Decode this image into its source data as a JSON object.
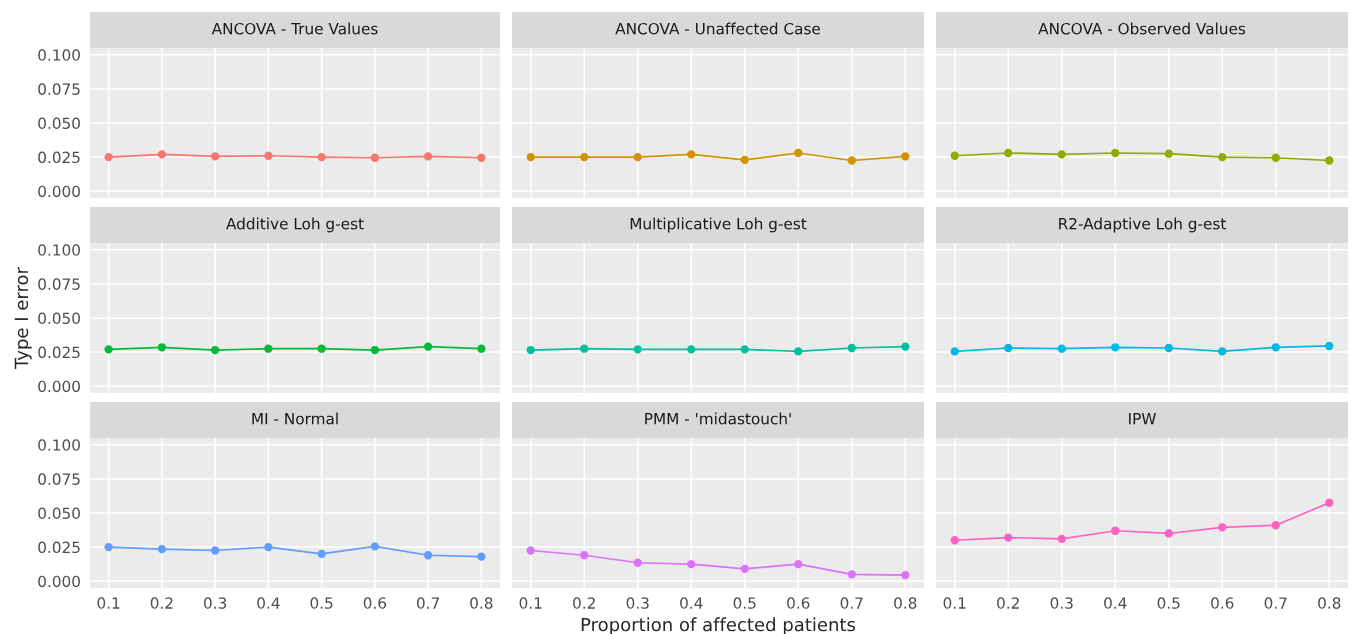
{
  "chart_data": [
    {
      "type": "line",
      "title": "ANCOVA - True Values",
      "ylabel": null,
      "x": [
        0.1,
        0.2,
        0.3,
        0.4,
        0.5,
        0.6,
        0.7,
        0.8
      ],
      "series": [
        {
          "color": "#f8766d",
          "values": [
            0.025,
            0.027,
            0.0255,
            0.026,
            0.025,
            0.0245,
            0.0255,
            0.0245
          ]
        }
      ],
      "xlim": [
        0.065,
        0.835
      ],
      "ylim": [
        -0.005,
        0.105
      ],
      "xticks": [
        0.1,
        0.2,
        0.3,
        0.4,
        0.5,
        0.6,
        0.7,
        0.8
      ],
      "yticks": [
        {
          "value": 0,
          "label": "0.000"
        },
        {
          "value": 0.025,
          "label": "0.025"
        },
        {
          "value": 0.05,
          "label": "0.050"
        },
        {
          "value": 0.075,
          "label": "0.075"
        },
        {
          "value": 0.1,
          "label": "0.100"
        }
      ],
      "grid": true,
      "marker": "circle",
      "tick_labels": "y"
    },
    {
      "type": "line",
      "title": "ANCOVA - Unaffected Case",
      "x": [
        0.1,
        0.2,
        0.3,
        0.4,
        0.5,
        0.6,
        0.7,
        0.8
      ],
      "series": [
        {
          "color": "#d39200",
          "values": [
            0.025,
            0.025,
            0.025,
            0.027,
            0.023,
            0.028,
            0.0225,
            0.0255
          ]
        }
      ],
      "xlim": [
        0.065,
        0.835
      ],
      "ylim": [
        -0.005,
        0.105
      ],
      "xticks": [
        0.1,
        0.2,
        0.3,
        0.4,
        0.5,
        0.6,
        0.7,
        0.8
      ],
      "yticks": [
        0,
        0.025,
        0.05,
        0.075,
        0.1
      ],
      "grid": true,
      "marker": "circle",
      "tick_labels": false
    },
    {
      "type": "line",
      "title": "ANCOVA - Observed Values",
      "x": [
        0.1,
        0.2,
        0.3,
        0.4,
        0.5,
        0.6,
        0.7,
        0.8
      ],
      "series": [
        {
          "color": "#93aa00",
          "values": [
            0.026,
            0.028,
            0.027,
            0.028,
            0.0275,
            0.025,
            0.0245,
            0.0225
          ]
        }
      ],
      "xlim": [
        0.065,
        0.835
      ],
      "ylim": [
        -0.005,
        0.105
      ],
      "xticks": [
        0.1,
        0.2,
        0.3,
        0.4,
        0.5,
        0.6,
        0.7,
        0.8
      ],
      "yticks": [
        0,
        0.025,
        0.05,
        0.075,
        0.1
      ],
      "grid": true,
      "marker": "circle",
      "tick_labels": false
    },
    {
      "type": "line",
      "title": "Additive Loh g-est",
      "ylabel": "Type I error",
      "x": [
        0.1,
        0.2,
        0.3,
        0.4,
        0.5,
        0.6,
        0.7,
        0.8
      ],
      "series": [
        {
          "color": "#00ba38",
          "values": [
            0.027,
            0.0285,
            0.0265,
            0.0275,
            0.0275,
            0.0265,
            0.029,
            0.0275
          ]
        }
      ],
      "xlim": [
        0.065,
        0.835
      ],
      "ylim": [
        -0.005,
        0.105
      ],
      "xticks": [
        0.1,
        0.2,
        0.3,
        0.4,
        0.5,
        0.6,
        0.7,
        0.8
      ],
      "yticks": [
        {
          "value": 0,
          "label": "0.000"
        },
        {
          "value": 0.025,
          "label": "0.025"
        },
        {
          "value": 0.05,
          "label": "0.050"
        },
        {
          "value": 0.075,
          "label": "0.075"
        },
        {
          "value": 0.1,
          "label": "0.100"
        }
      ],
      "grid": true,
      "marker": "circle",
      "tick_labels": "y"
    },
    {
      "type": "line",
      "title": "Multiplicative Loh g-est",
      "x": [
        0.1,
        0.2,
        0.3,
        0.4,
        0.5,
        0.6,
        0.7,
        0.8
      ],
      "series": [
        {
          "color": "#00c19f",
          "values": [
            0.0265,
            0.0275,
            0.027,
            0.027,
            0.027,
            0.0255,
            0.028,
            0.029
          ]
        }
      ],
      "xlim": [
        0.065,
        0.835
      ],
      "ylim": [
        -0.005,
        0.105
      ],
      "xticks": [
        0.1,
        0.2,
        0.3,
        0.4,
        0.5,
        0.6,
        0.7,
        0.8
      ],
      "yticks": [
        0,
        0.025,
        0.05,
        0.075,
        0.1
      ],
      "grid": true,
      "marker": "circle",
      "tick_labels": false
    },
    {
      "type": "line",
      "title": "R2-Adaptive Loh g-est",
      "x": [
        0.1,
        0.2,
        0.3,
        0.4,
        0.5,
        0.6,
        0.7,
        0.8
      ],
      "series": [
        {
          "color": "#00b9e3",
          "values": [
            0.0255,
            0.028,
            0.0275,
            0.0285,
            0.028,
            0.0255,
            0.0285,
            0.0295
          ]
        }
      ],
      "xlim": [
        0.065,
        0.835
      ],
      "ylim": [
        -0.005,
        0.105
      ],
      "xticks": [
        0.1,
        0.2,
        0.3,
        0.4,
        0.5,
        0.6,
        0.7,
        0.8
      ],
      "yticks": [
        0,
        0.025,
        0.05,
        0.075,
        0.1
      ],
      "grid": true,
      "marker": "circle",
      "tick_labels": false
    },
    {
      "type": "line",
      "title": "MI - Normal",
      "x": [
        0.1,
        0.2,
        0.3,
        0.4,
        0.5,
        0.6,
        0.7,
        0.8
      ],
      "series": [
        {
          "color": "#619cff",
          "values": [
            0.025,
            0.0235,
            0.0225,
            0.025,
            0.02,
            0.0255,
            0.019,
            0.018
          ]
        }
      ],
      "xlim": [
        0.065,
        0.835
      ],
      "ylim": [
        -0.005,
        0.105
      ],
      "xticks": [
        0.1,
        0.2,
        0.3,
        0.4,
        0.5,
        0.6,
        0.7,
        0.8
      ],
      "yticks": [
        {
          "value": 0,
          "label": "0.000"
        },
        {
          "value": 0.025,
          "label": "0.025"
        },
        {
          "value": 0.05,
          "label": "0.050"
        },
        {
          "value": 0.075,
          "label": "0.075"
        },
        {
          "value": 0.1,
          "label": "0.100"
        }
      ],
      "grid": true,
      "marker": "circle"
    },
    {
      "type": "line",
      "title": "PMM - 'midastouch'",
      "xlabel": "Proportion of affected patients",
      "x": [
        0.1,
        0.2,
        0.3,
        0.4,
        0.5,
        0.6,
        0.7,
        0.8
      ],
      "series": [
        {
          "color": "#db72fb",
          "values": [
            0.0225,
            0.019,
            0.0135,
            0.0125,
            0.009,
            0.0125,
            0.005,
            0.0045
          ]
        }
      ],
      "xlim": [
        0.065,
        0.835
      ],
      "ylim": [
        -0.005,
        0.105
      ],
      "xticks": [
        0.1,
        0.2,
        0.3,
        0.4,
        0.5,
        0.6,
        0.7,
        0.8
      ],
      "yticks": [
        0,
        0.025,
        0.05,
        0.075,
        0.1
      ],
      "grid": true,
      "marker": "circle",
      "tick_labels": "x"
    },
    {
      "type": "line",
      "title": "IPW",
      "x": [
        0.1,
        0.2,
        0.3,
        0.4,
        0.5,
        0.6,
        0.7,
        0.8
      ],
      "series": [
        {
          "color": "#ff61c3",
          "values": [
            0.03,
            0.032,
            0.031,
            0.037,
            0.035,
            0.0395,
            0.041,
            0.0575
          ]
        }
      ],
      "xlim": [
        0.065,
        0.835
      ],
      "ylim": [
        -0.005,
        0.105
      ],
      "xticks": [
        0.1,
        0.2,
        0.3,
        0.4,
        0.5,
        0.6,
        0.7,
        0.8
      ],
      "yticks": [
        0,
        0.025,
        0.05,
        0.075,
        0.1
      ],
      "grid": true,
      "marker": "circle",
      "tick_labels": "x"
    }
  ]
}
